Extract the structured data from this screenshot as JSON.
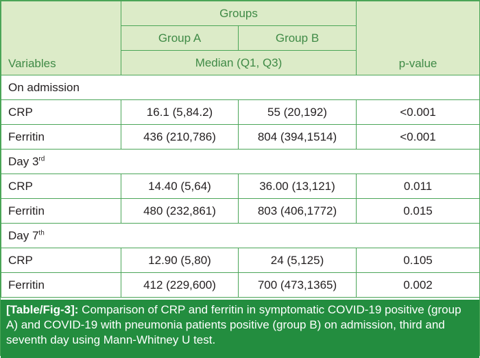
{
  "header": {
    "variables": "Variables",
    "groups": "Groups",
    "group_a": "Group A",
    "group_b": "Group B",
    "median_label": "Median (Q1, Q3)",
    "pvalue": "p-value"
  },
  "sections": [
    {
      "title": "On admission",
      "title_sup": "",
      "rows": [
        {
          "variable": "CRP",
          "group_a": "16.1 (5,84.2)",
          "group_b": "55 (20,192)",
          "pvalue": "<0.001"
        },
        {
          "variable": "Ferritin",
          "group_a": "436 (210,786)",
          "group_b": "804 (394,1514)",
          "pvalue": "<0.001"
        }
      ]
    },
    {
      "title": "Day 3",
      "title_sup": "rd",
      "rows": [
        {
          "variable": "CRP",
          "group_a": "14.40 (5,64)",
          "group_b": "36.00 (13,121)",
          "pvalue": "0.011"
        },
        {
          "variable": "Ferritin",
          "group_a": "480 (232,861)",
          "group_b": "803 (406,1772)",
          "pvalue": "0.015"
        }
      ]
    },
    {
      "title": "Day 7",
      "title_sup": "th",
      "rows": [
        {
          "variable": "CRP",
          "group_a": "12.90 (5,80)",
          "group_b": "24 (5,125)",
          "pvalue": "0.105"
        },
        {
          "variable": "Ferritin",
          "group_a": "412 (229,600)",
          "group_b": "700 (473,1365)",
          "pvalue": "0.002"
        }
      ]
    }
  ],
  "caption": {
    "tag": "[Table/Fig-3]:",
    "text": " Comparison of CRP and ferritin in symptomatic COVID-19 positive (group A) and COVID-19 with pneumonia patients positive (group B) on admission, third and seventh day using Mann-Whitney U test."
  }
}
